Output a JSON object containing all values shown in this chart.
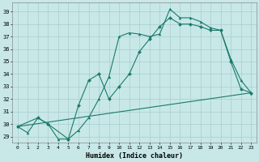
{
  "xlabel": "Humidex (Indice chaleur)",
  "bg_color": "#c8e8e8",
  "line_color": "#1a7a6a",
  "grid_color": "#a8cccc",
  "x_ticks": [
    0,
    1,
    2,
    3,
    4,
    5,
    6,
    7,
    8,
    9,
    10,
    11,
    12,
    13,
    14,
    15,
    16,
    17,
    18,
    19,
    20,
    21,
    22,
    23
  ],
  "y_ticks": [
    29,
    30,
    31,
    32,
    33,
    34,
    35,
    36,
    37,
    38,
    39
  ],
  "ylim": [
    28.5,
    39.7
  ],
  "xlim": [
    -0.5,
    23.5
  ],
  "line_upper": {
    "x": [
      0,
      1,
      2,
      3,
      4,
      5,
      6,
      7,
      8,
      9,
      10,
      11,
      12,
      13,
      14,
      15,
      16,
      17,
      18,
      19,
      20,
      21,
      22,
      23
    ],
    "y": [
      29.8,
      29.3,
      30.5,
      30.0,
      28.8,
      28.8,
      29.5,
      30.5,
      32.0,
      33.8,
      37.0,
      37.3,
      37.2,
      37.0,
      37.2,
      39.2,
      38.5,
      38.5,
      38.2,
      37.7,
      37.5,
      35.2,
      33.5,
      32.5
    ]
  },
  "line_lower": {
    "x": [
      0,
      2,
      3,
      5,
      6,
      7,
      8,
      9,
      10,
      11,
      12,
      13,
      14,
      15,
      16,
      17,
      18,
      19,
      20,
      21,
      22,
      23
    ],
    "y": [
      29.8,
      30.5,
      30.0,
      28.8,
      31.5,
      33.5,
      34.0,
      32.0,
      33.0,
      34.0,
      35.8,
      36.8,
      37.8,
      38.5,
      38.0,
      38.0,
      37.8,
      37.5,
      37.5,
      35.0,
      32.8,
      32.5
    ]
  },
  "line_straight": {
    "x": [
      0,
      23
    ],
    "y": [
      29.8,
      32.5
    ]
  }
}
